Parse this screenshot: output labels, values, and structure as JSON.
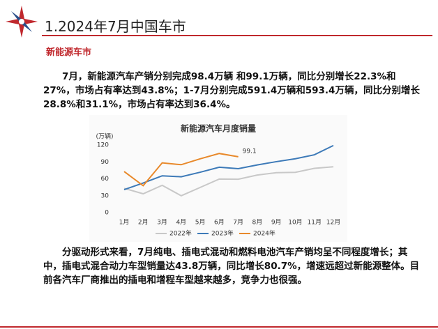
{
  "header": {
    "title": "1.2024年7月中国车市",
    "section": "新能源车市"
  },
  "paragraphs": [
    "7月，新能源汽车产销分别完成98.4万辆 和99.1万辆，同比分别增长22.3%和27%，市场占有率达到43.8%；1-7月分别完成591.4万辆和593.4万辆，同比分别增长28.8%和31.1%，市场占有率达到36.4%。",
    "分驱动形式来看，7月纯电、插电式混动和燃料电池汽车产销均呈不同程度增长；其中，插电式混合动力车型销量达43.8万辆，同比增长80.7%，增速远超过新能源整体。目前各汽车厂商推出的插电和增程车型越来越多，竞争力也很强。"
  ],
  "chart_data": {
    "type": "line",
    "title": "新能源汽车月度销量",
    "y_label": "(万辆)",
    "categories": [
      "1月",
      "2月",
      "3月",
      "4月",
      "5月",
      "6月",
      "7月",
      "8月",
      "9月",
      "10月",
      "11月",
      "12月"
    ],
    "series": [
      {
        "name": "2022年",
        "color": "#c8c8c8",
        "values": [
          43.1,
          33.4,
          48.4,
          29.9,
          44.7,
          59.6,
          59.3,
          66.6,
          70.8,
          71.4,
          78.6,
          81.4
        ]
      },
      {
        "name": "2023年",
        "color": "#3d7ab8",
        "values": [
          40.8,
          52.5,
          65.3,
          63.6,
          71.7,
          80.6,
          78.0,
          84.6,
          90.4,
          95.6,
          102.6,
          119.1
        ]
      },
      {
        "name": "2024年",
        "color": "#e8892b",
        "values": [
          72.9,
          47.7,
          88.3,
          85.0,
          95.5,
          104.9,
          99.1,
          null,
          null,
          null,
          null,
          null
        ]
      }
    ],
    "annotations": [
      {
        "text": "99.1",
        "series": 2,
        "index": 6
      }
    ],
    "ylim": [
      0,
      120
    ],
    "yticks": [
      0,
      30,
      60,
      90,
      120
    ],
    "grid": false
  }
}
